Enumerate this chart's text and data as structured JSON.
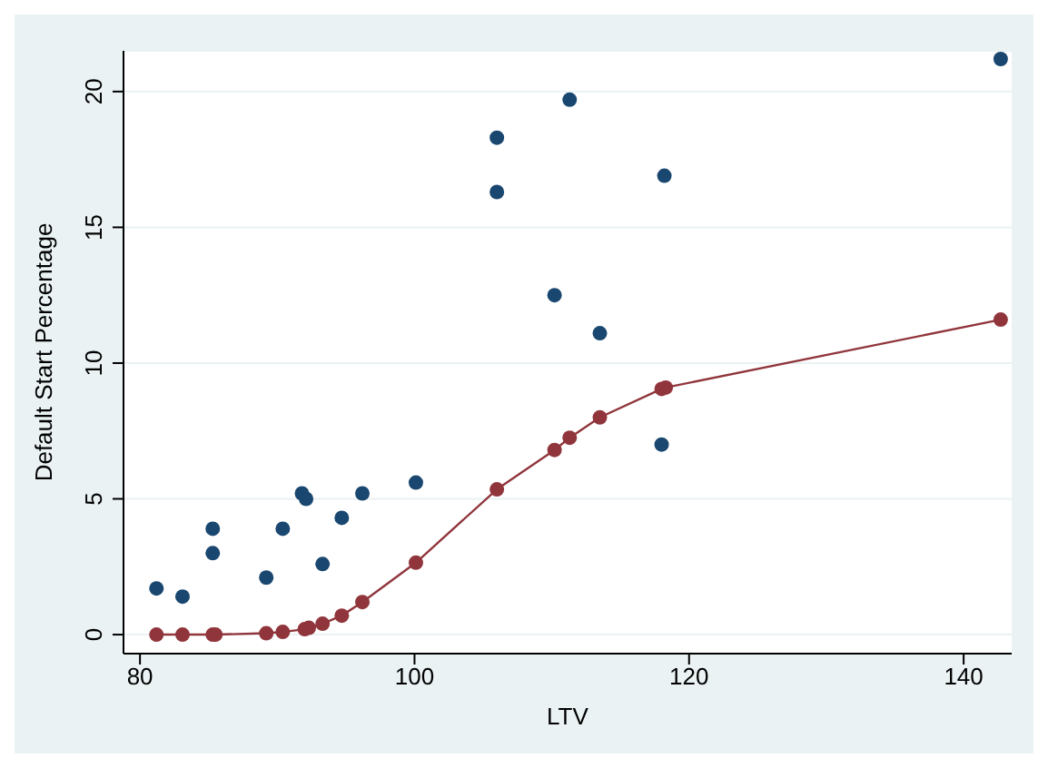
{
  "chart_data": {
    "type": "scatter",
    "xlabel": "LTV",
    "ylabel": "Default Start Percentage",
    "xlim": [
      78.8,
      143.5
    ],
    "ylim": [
      -0.7,
      21.5
    ],
    "xticks": [
      80,
      100,
      120,
      140
    ],
    "yticks": [
      0,
      5,
      10,
      15,
      20
    ],
    "grid": "y",
    "marker": "circle",
    "legend": false,
    "series": [
      {
        "color": "#1a476f",
        "x": [
          81.2,
          83.1,
          85.3,
          85.3,
          89.2,
          90.4,
          91.8,
          92.1,
          93.3,
          94.7,
          96.2,
          100.1,
          106,
          106,
          111.3,
          110.2,
          113.5,
          118.2,
          118,
          142.7
        ],
        "values": [
          1.7,
          1.4,
          3.0,
          3.9,
          2.1,
          3.9,
          5.2,
          5.0,
          2.6,
          4.3,
          5.2,
          5.6,
          16.3,
          18.3,
          19.7,
          12.5,
          11.1,
          16.9,
          7.0,
          21.2
        ]
      },
      {
        "type": "line",
        "color": "#90353b",
        "x": [
          81.2,
          83.1,
          85.3,
          85.5,
          89.2,
          90.4,
          92,
          92.3,
          93.3,
          94.7,
          96.2,
          100.1,
          106,
          110.2,
          111.3,
          113.5,
          118,
          118.3,
          142.7
        ],
        "values": [
          0,
          0,
          0,
          0,
          0.05,
          0.1,
          0.2,
          0.25,
          0.4,
          0.7,
          1.2,
          2.65,
          5.35,
          6.8,
          7.25,
          8,
          9.05,
          9.1,
          11.6
        ]
      }
    ]
  }
}
